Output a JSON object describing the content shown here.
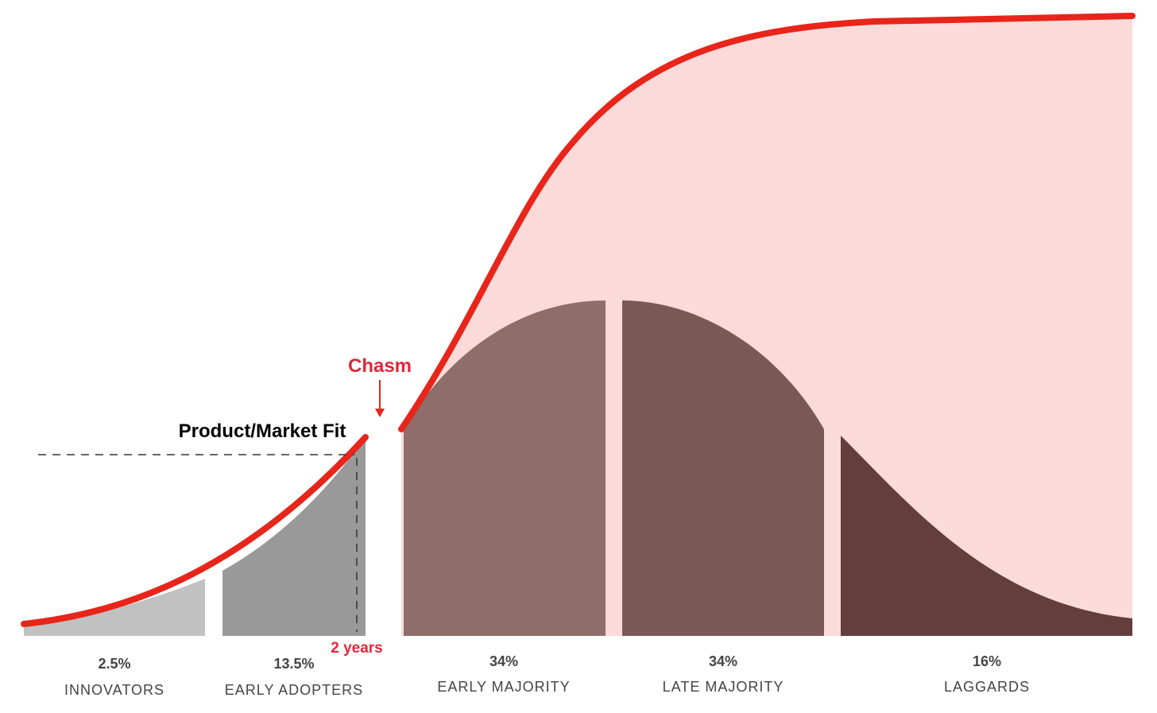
{
  "annotations": {
    "product_market_fit": "Product/Market Fit",
    "chasm": "Chasm",
    "time": "2 years"
  },
  "segments": [
    {
      "share": "2.5%",
      "label": "INNOVATORS"
    },
    {
      "share": "13.5%",
      "label": "EARLY ADOPTERS"
    },
    {
      "share": "34%",
      "label": "EARLY MAJORITY"
    },
    {
      "share": "34%",
      "label": "LATE MAJORITY"
    },
    {
      "share": "16%",
      "label": "LAGGARDS"
    }
  ]
}
